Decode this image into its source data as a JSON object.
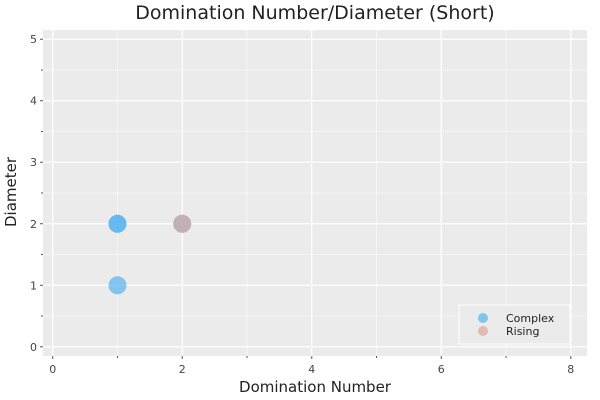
{
  "chart_data": {
    "type": "scatter",
    "title": "Domination Number/Diameter (Short)",
    "xlabel": "Domination Number",
    "ylabel": "Diameter",
    "xlim": [
      -0.15,
      8.25
    ],
    "ylim": [
      -0.15,
      5.15
    ],
    "x_ticks": [
      0,
      2,
      4,
      6,
      8
    ],
    "x_tick_labels": [
      "0",
      "2",
      "4",
      "6",
      "8"
    ],
    "x_minor_ticks": [
      1,
      3,
      5,
      7
    ],
    "y_ticks": [
      0,
      1,
      2,
      3,
      4,
      5
    ],
    "y_tick_labels": [
      "0",
      "1",
      "2",
      "3",
      "4",
      "5"
    ],
    "y_minor_ticks": [
      0.5,
      1.5,
      2.5,
      3.5,
      4.5
    ],
    "grid": true,
    "legend_position": "bottom-right",
    "series": [
      {
        "name": "Complex",
        "color": "#5ab4ee",
        "points": [
          {
            "x": 1,
            "y": 1
          },
          {
            "x": 1,
            "y": 2
          },
          {
            "x": 1,
            "y": 2
          },
          {
            "x": 2,
            "y": 2
          }
        ]
      },
      {
        "name": "Rising",
        "color": "#d9a89a",
        "points": [
          {
            "x": 2,
            "y": 2
          }
        ]
      }
    ]
  },
  "colors": {
    "plot_background": "#ebebeb",
    "grid": "#ffffff",
    "overlap": "#6b8bab"
  }
}
